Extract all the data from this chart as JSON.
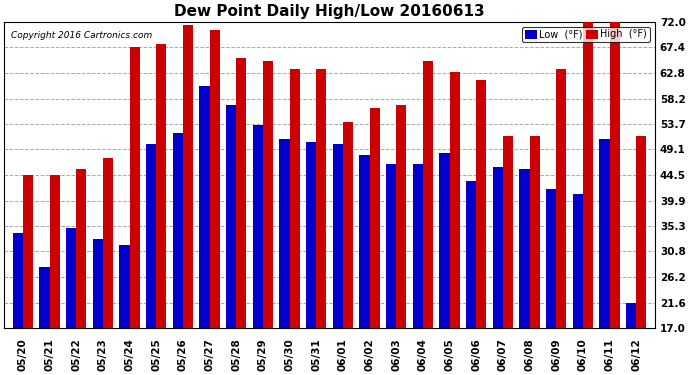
{
  "title": "Dew Point Daily High/Low 20160613",
  "copyright": "Copyright 2016 Cartronics.com",
  "dates": [
    "05/20",
    "05/21",
    "05/22",
    "05/23",
    "05/24",
    "05/25",
    "05/26",
    "05/27",
    "05/28",
    "05/29",
    "05/30",
    "05/31",
    "06/01",
    "06/02",
    "06/03",
    "06/04",
    "06/05",
    "06/06",
    "06/07",
    "06/08",
    "06/09",
    "06/10",
    "06/11",
    "06/12"
  ],
  "low_values": [
    34.0,
    28.0,
    35.0,
    33.0,
    32.0,
    50.0,
    52.0,
    60.5,
    57.0,
    53.5,
    51.0,
    50.5,
    50.0,
    48.0,
    46.5,
    46.5,
    48.5,
    43.5,
    46.0,
    45.5,
    42.0,
    41.0,
    51.0,
    21.6
  ],
  "high_values": [
    44.5,
    44.5,
    45.5,
    47.5,
    67.4,
    68.0,
    71.5,
    70.5,
    65.5,
    65.0,
    63.5,
    63.5,
    54.0,
    56.5,
    57.0,
    65.0,
    63.0,
    61.5,
    51.5,
    51.5,
    63.5,
    72.0,
    72.0,
    51.5
  ],
  "low_color": "#0000cc",
  "high_color": "#cc0000",
  "legend_low_label": "Low  (°F)",
  "legend_high_label": "High  (°F)",
  "yticks": [
    17.0,
    21.6,
    26.2,
    30.8,
    35.3,
    39.9,
    44.5,
    49.1,
    53.7,
    58.2,
    62.8,
    67.4,
    72.0
  ],
  "ymin": 17.0,
  "ymax": 72.0,
  "background_color": "#ffffff",
  "grid_color": "#aaaaaa",
  "title_fontsize": 11,
  "tick_fontsize": 7.5,
  "bar_width": 0.38,
  "legend_bg": "#ff0000",
  "legend_bg_low": "#0000cc"
}
